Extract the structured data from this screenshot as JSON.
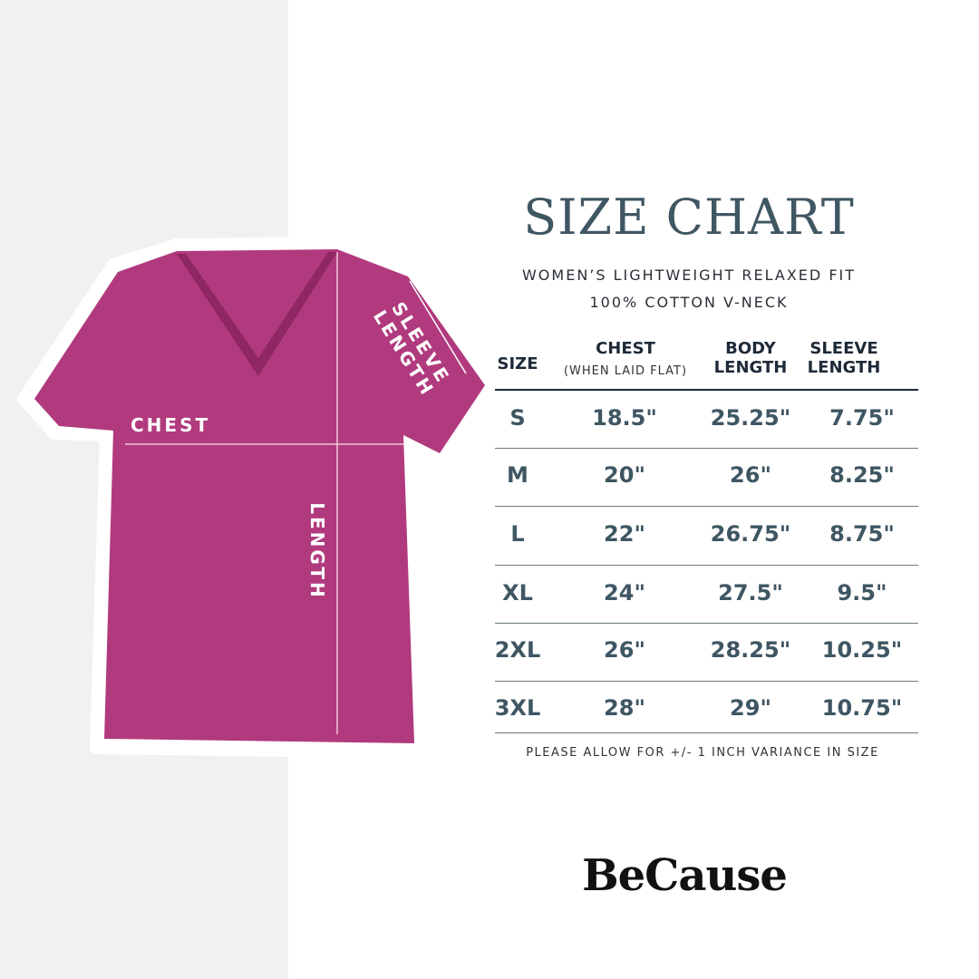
{
  "colors": {
    "shirt": "#b13a7e",
    "title": "#3f5663",
    "background_left": "#f1f1f1"
  },
  "illustration": {
    "chest_label": "CHEST",
    "length_label": "LENGTH",
    "sleeve_label_1": "SLEEVE",
    "sleeve_label_2": "LENGTH"
  },
  "title": "SIZE CHART",
  "subtitle_1": "WOMEN’S LIGHTWEIGHT RELAXED FIT",
  "subtitle_2": "100% COTTON V-NECK",
  "table": {
    "headers": {
      "size": "SIZE",
      "chest": "CHEST",
      "chest_note": "(WHEN LAID FLAT)",
      "body_1": "BODY",
      "body_2": "LENGTH",
      "sleeve_1": "SLEEVE",
      "sleeve_2": "LENGTH"
    },
    "rows": [
      [
        "S",
        "18.5\"",
        "25.25\"",
        "7.75\""
      ],
      [
        "M",
        "20\"",
        "26\"",
        "8.25\""
      ],
      [
        "L",
        "22\"",
        "26.75\"",
        "8.75\""
      ],
      [
        "XL",
        "24\"",
        "27.5\"",
        "9.5\""
      ],
      [
        "2XL",
        "26\"",
        "28.25\"",
        "10.25\""
      ],
      [
        "3XL",
        "28\"",
        "29\"",
        "10.75\""
      ]
    ]
  },
  "note": "PLEASE ALLOW FOR +/- 1 INCH VARIANCE IN SIZE",
  "logo": "BeCause"
}
